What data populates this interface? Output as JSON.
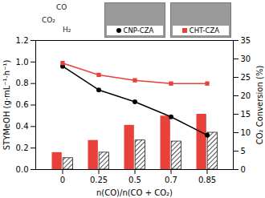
{
  "chart_data": {
    "type": "bar",
    "categories": [
      "0",
      "0.25",
      "0.5",
      "0.7",
      "0.85"
    ],
    "xlabel": "n(CO)/n(CO + CO₂)",
    "ylabel": "STYMeOH (g·mL⁻¹·h⁻¹)",
    "y2label": "CO₂ Conversion (%)",
    "ylim": [
      0,
      1.2
    ],
    "yticks": [
      {
        "value": 0,
        "label": "0.0"
      },
      0.2,
      0.4,
      0.6,
      0.8,
      {
        "value": 1,
        "label": "1.0"
      },
      1.2
    ],
    "y2lim": [
      0,
      35
    ],
    "y2ticks": [
      0,
      5,
      10,
      15,
      20,
      25,
      30,
      35
    ],
    "annotations": [
      "CO",
      "CO₂",
      "H₂"
    ],
    "legend": "top",
    "grid": false,
    "series": [
      {
        "name": "CHT-CZA",
        "type": "bar",
        "axis": "y2",
        "color": "#e8413c",
        "values": [
          4.6,
          7.9,
          12,
          14.5,
          15
        ]
      },
      {
        "name": "CNP-CZA",
        "type": "bar",
        "axis": "y2",
        "color": "#222222",
        "values": [
          3.1,
          4.6,
          7.9,
          7.6,
          10
        ]
      },
      {
        "name": "CNP-CZA",
        "type": "line",
        "color": "#000000",
        "marker": "circle",
        "values": [
          0.96,
          0.74,
          0.63,
          0.49,
          0.32
        ]
      },
      {
        "name": "CHT-CZA",
        "type": "line",
        "color": "#e8413c",
        "marker": "square",
        "values": [
          0.99,
          0.88,
          0.83,
          0.8,
          0.8
        ]
      }
    ]
  }
}
